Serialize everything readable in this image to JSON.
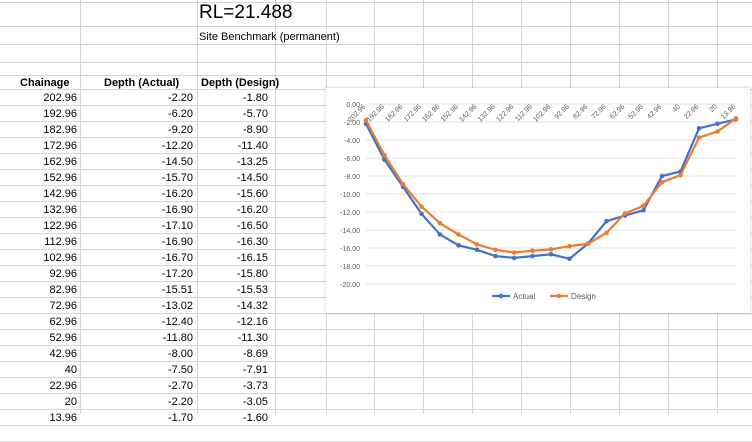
{
  "sheet": {
    "rl_label": "RL=21.488",
    "benchmark_label": "Site Benchmark (permanent)",
    "headers": [
      "Chainage",
      "Depth (Actual)",
      "Depth (Design)"
    ],
    "rows": [
      [
        "202.96",
        "-2.20",
        "-1.80"
      ],
      [
        "192.96",
        "-6.20",
        "-5.70"
      ],
      [
        "182.96",
        "-9.20",
        "-8.90"
      ],
      [
        "172.96",
        "-12.20",
        "-11.40"
      ],
      [
        "162.96",
        "-14.50",
        "-13.25"
      ],
      [
        "152.96",
        "-15.70",
        "-14.50"
      ],
      [
        "142.96",
        "-16.20",
        "-15.60"
      ],
      [
        "132.96",
        "-16.90",
        "-16.20"
      ],
      [
        "122.96",
        "-17.10",
        "-16.50"
      ],
      [
        "112.96",
        "-16.90",
        "-16.30"
      ],
      [
        "102.96",
        "-16.70",
        "-16.15"
      ],
      [
        "92.96",
        "-17.20",
        "-15.80"
      ],
      [
        "82.96",
        "-15.51",
        "-15.53"
      ],
      [
        "72.96",
        "-13.02",
        "-14.32"
      ],
      [
        "62.96",
        "-12.40",
        "-12.16"
      ],
      [
        "52.96",
        "-11.80",
        "-11.30"
      ],
      [
        "42.96",
        "-8.00",
        "-8.69"
      ],
      [
        "40",
        "-7.50",
        "-7.91"
      ],
      [
        "22.96",
        "-2.70",
        "-3.73"
      ],
      [
        "20",
        "-2.20",
        "-3.05"
      ],
      [
        "13.96",
        "-1.70",
        "-1.60"
      ]
    ]
  },
  "chart_data": {
    "type": "line",
    "categories": [
      "202.96",
      "192.96",
      "182.96",
      "172.96",
      "162.96",
      "152.96",
      "142.96",
      "132.96",
      "122.96",
      "112.96",
      "102.96",
      "92.96",
      "82.96",
      "72.96",
      "62.96",
      "52.96",
      "42.96",
      "40",
      "22.96",
      "20",
      "13.96"
    ],
    "series": [
      {
        "name": "Actual",
        "color": "#4472C4",
        "values": [
          -2.2,
          -6.2,
          -9.2,
          -12.2,
          -14.5,
          -15.7,
          -16.2,
          -16.9,
          -17.1,
          -16.9,
          -16.7,
          -17.2,
          -15.51,
          -13.02,
          -12.4,
          -11.8,
          -8.0,
          -7.5,
          -2.7,
          -2.2,
          -1.7
        ]
      },
      {
        "name": "Design",
        "color": "#ED7D31",
        "values": [
          -1.8,
          -5.7,
          -8.9,
          -11.4,
          -13.25,
          -14.5,
          -15.6,
          -16.2,
          -16.5,
          -16.3,
          -16.15,
          -15.8,
          -15.53,
          -14.32,
          -12.16,
          -11.3,
          -8.69,
          -7.91,
          -3.73,
          -3.05,
          -1.6
        ]
      }
    ],
    "yticks": [
      "0.00",
      "-2.00",
      "-4.00",
      "-6.00",
      "-8.00",
      "-10.00",
      "-12.00",
      "-14.00",
      "-16.00",
      "-18.00",
      "-20.00"
    ],
    "ylim": [
      -20,
      0
    ],
    "legend": "bottom",
    "grid": true
  }
}
